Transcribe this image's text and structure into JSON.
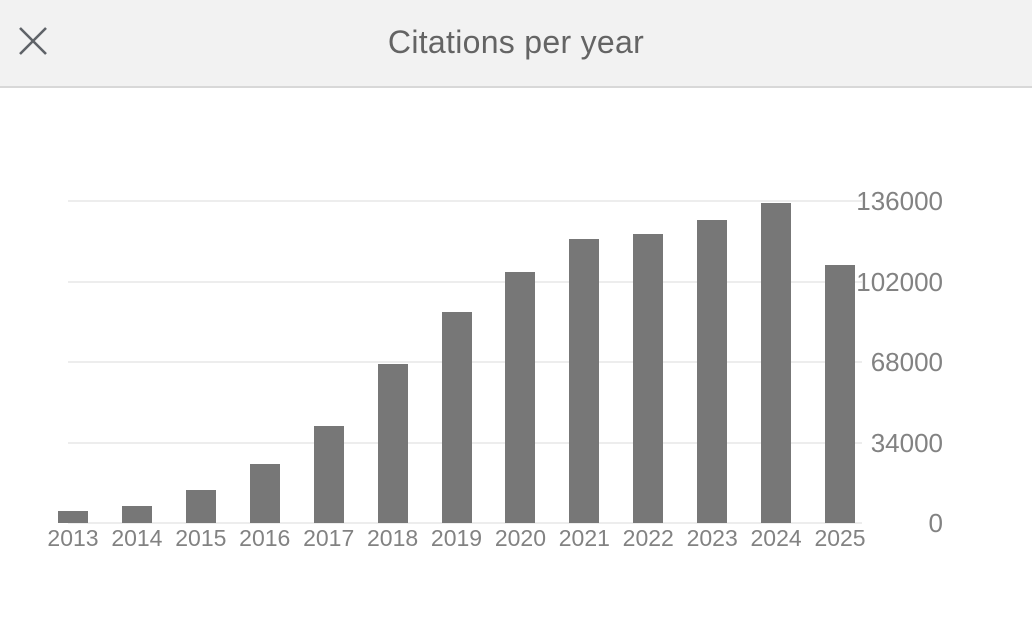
{
  "header": {
    "title": "Citations per year",
    "close_label": "Close"
  },
  "colors": {
    "header_bg": "#f2f2f2",
    "header_border": "#d8d8d8",
    "title_text": "#646464",
    "close_icon": "#5f6368",
    "bar": "#777777",
    "gridline": "#ededed",
    "axis_label": "#828282",
    "background": "#ffffff"
  },
  "chart_data": {
    "type": "bar",
    "title": "Citations per year",
    "categories": [
      "2013",
      "2014",
      "2015",
      "2016",
      "2017",
      "2018",
      "2019",
      "2020",
      "2021",
      "2022",
      "2023",
      "2024",
      "2025"
    ],
    "values": [
      5000,
      7000,
      14000,
      25000,
      41000,
      67000,
      89000,
      106000,
      120000,
      122000,
      128000,
      135000,
      109000
    ],
    "xlabel": "",
    "ylabel": "",
    "ylim": [
      0,
      136000
    ],
    "yticks": [
      0,
      34000,
      68000,
      102000,
      136000
    ],
    "ytick_labels": [
      "0",
      "34000",
      "68000",
      "102000",
      "136000"
    ],
    "y_axis_side": "right",
    "grid": "horizontal",
    "legend": "none",
    "bar_color": "#777777",
    "first_column_clipped_at_left": true
  }
}
